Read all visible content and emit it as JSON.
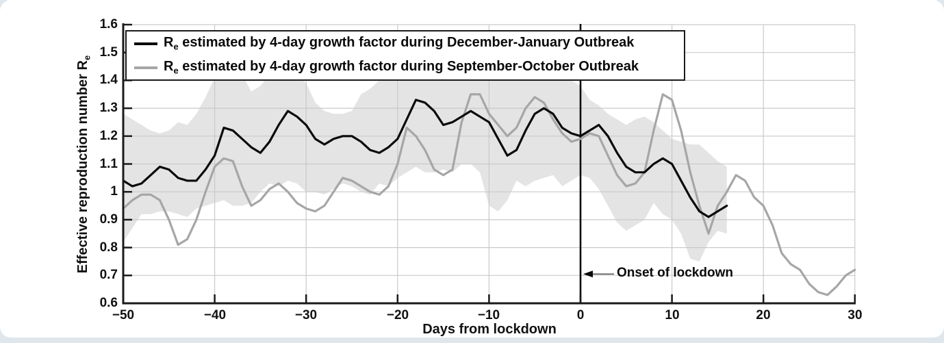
{
  "figure": {
    "page_background": "#dfe7ed",
    "card_background": "#ffffff"
  },
  "legend": {
    "items": [
      {
        "symbol": "R",
        "sub": "e",
        "text": " estimated by 4-day growth factor during December-January Outbreak",
        "color": "#0a0a0a"
      },
      {
        "symbol": "R",
        "sub": "e",
        "text": " estimated by 4-day growth factor during September-October Outbreak",
        "color": "#a6a6a6"
      }
    ]
  },
  "axes": {
    "y_label_main": "Effective reproduction number R",
    "y_label_sub": "e",
    "x_label": "Days from lockdown",
    "y_ticks": [
      "1.6",
      "1.5",
      "1.4",
      "1.3",
      "1.2",
      "1.1",
      "1",
      "0.9",
      "0.8",
      "0.7",
      "0.6"
    ],
    "x_ticks": [
      "−50",
      "−40",
      "−30",
      "−20",
      "−10",
      "0",
      "10",
      "20",
      "30"
    ]
  },
  "annotation": {
    "text": "Onset of lockdown",
    "arrow_points_to_day": 0,
    "arrow_y_value": 0.705
  },
  "colors": {
    "black_line": "#0a0a0a",
    "gray_line": "#a6a6a6",
    "band_fill": "#e4e4e4",
    "gridline": "#c9c9c9",
    "spine": "#1a1a1a"
  },
  "chart_data": {
    "type": "line",
    "title": "",
    "xlabel": "Days from lockdown",
    "ylabel": "Effective reproduction number Re",
    "xlim": [
      -50,
      30
    ],
    "ylim": [
      0.6,
      1.6
    ],
    "grid": true,
    "legend_position": "top-left",
    "lockdown_line_x": 0,
    "x_grid": [
      -40,
      -30,
      -20,
      -10,
      0,
      10,
      20,
      30
    ],
    "y_grid": [
      0.7,
      0.8,
      0.9,
      1.0,
      1.1,
      1.2,
      1.3,
      1.4,
      1.5,
      1.6
    ],
    "series": [
      {
        "name": "Re estimated by 4-day growth factor during December-January Outbreak",
        "color": "#0a0a0a",
        "x": [
          -50,
          -49,
          -48,
          -47,
          -46,
          -45,
          -44,
          -43,
          -42,
          -41,
          -40,
          -39,
          -38,
          -37,
          -36,
          -35,
          -34,
          -33,
          -32,
          -31,
          -30,
          -29,
          -28,
          -27,
          -26,
          -25,
          -24,
          -23,
          -22,
          -21,
          -20,
          -19,
          -18,
          -17,
          -16,
          -15,
          -14,
          -13,
          -12,
          -11,
          -10,
          -9,
          -8,
          -7,
          -6,
          -5,
          -4,
          -3,
          -2,
          -1,
          0,
          1,
          2,
          3,
          4,
          5,
          6,
          7,
          8,
          9,
          10,
          11,
          12,
          13,
          14,
          15,
          16
        ],
        "y": [
          1.04,
          1.02,
          1.03,
          1.06,
          1.09,
          1.08,
          1.05,
          1.04,
          1.04,
          1.08,
          1.13,
          1.23,
          1.22,
          1.19,
          1.16,
          1.14,
          1.18,
          1.24,
          1.29,
          1.27,
          1.24,
          1.19,
          1.17,
          1.19,
          1.2,
          1.2,
          1.18,
          1.15,
          1.14,
          1.16,
          1.19,
          1.26,
          1.33,
          1.32,
          1.29,
          1.24,
          1.25,
          1.27,
          1.29,
          1.27,
          1.25,
          1.19,
          1.13,
          1.15,
          1.22,
          1.28,
          1.3,
          1.28,
          1.23,
          1.21,
          1.2,
          1.22,
          1.24,
          1.2,
          1.14,
          1.09,
          1.07,
          1.07,
          1.1,
          1.12,
          1.1,
          1.04,
          0.98,
          0.93,
          0.91,
          0.93,
          0.95
        ]
      },
      {
        "name": "Re estimated by 4-day growth factor during September-October Outbreak",
        "color": "#a6a6a6",
        "x": [
          -50,
          -49,
          -48,
          -47,
          -46,
          -45,
          -44,
          -43,
          -42,
          -41,
          -40,
          -39,
          -38,
          -37,
          -36,
          -35,
          -34,
          -33,
          -32,
          -31,
          -30,
          -29,
          -28,
          -27,
          -26,
          -25,
          -24,
          -23,
          -22,
          -21,
          -20,
          -19,
          -18,
          -17,
          -16,
          -15,
          -14,
          -13,
          -12,
          -11,
          -10,
          -9,
          -8,
          -7,
          -6,
          -5,
          -4,
          -3,
          -2,
          -1,
          0,
          1,
          2,
          3,
          4,
          5,
          6,
          7,
          8,
          9,
          10,
          11,
          12,
          13,
          14,
          15,
          16,
          17,
          18,
          19,
          20,
          21,
          22,
          23,
          24,
          25,
          26,
          27,
          28,
          29,
          30
        ],
        "y": [
          0.94,
          0.97,
          0.99,
          0.99,
          0.97,
          0.9,
          0.81,
          0.83,
          0.9,
          1.0,
          1.09,
          1.12,
          1.11,
          1.02,
          0.95,
          0.97,
          1.01,
          1.03,
          1.0,
          0.96,
          0.94,
          0.93,
          0.95,
          1.0,
          1.05,
          1.04,
          1.02,
          1.0,
          0.99,
          1.02,
          1.1,
          1.23,
          1.2,
          1.15,
          1.08,
          1.06,
          1.08,
          1.25,
          1.35,
          1.35,
          1.28,
          1.24,
          1.2,
          1.23,
          1.3,
          1.34,
          1.32,
          1.26,
          1.21,
          1.18,
          1.19,
          1.21,
          1.2,
          1.13,
          1.06,
          1.02,
          1.03,
          1.07,
          1.22,
          1.35,
          1.33,
          1.22,
          1.07,
          0.95,
          0.85,
          0.95,
          1.0,
          1.06,
          1.04,
          0.98,
          0.95,
          0.88,
          0.78,
          0.74,
          0.72,
          0.67,
          0.64,
          0.63,
          0.66,
          0.7,
          0.72
        ]
      }
    ],
    "band": {
      "belongs_to": "December-January series (confidence interval)",
      "color": "#e4e4e4",
      "x": [
        -50,
        -49,
        -48,
        -47,
        -46,
        -45,
        -44,
        -43,
        -42,
        -41,
        -40,
        -39,
        -38,
        -37,
        -36,
        -35,
        -34,
        -33,
        -32,
        -31,
        -30,
        -29,
        -28,
        -27,
        -26,
        -25,
        -24,
        -23,
        -22,
        -21,
        -20,
        -19,
        -18,
        -17,
        -16,
        -15,
        -14,
        -13,
        -12,
        -11,
        -10,
        -9,
        -8,
        -7,
        -6,
        -5,
        -4,
        -3,
        -2,
        -1,
        0,
        1,
        2,
        3,
        4,
        5,
        6,
        7,
        8,
        9,
        10,
        11,
        12,
        13,
        14,
        15,
        16
      ],
      "upper": [
        1.28,
        1.26,
        1.24,
        1.22,
        1.21,
        1.22,
        1.25,
        1.24,
        1.28,
        1.34,
        1.41,
        1.42,
        1.45,
        1.42,
        1.36,
        1.38,
        1.42,
        1.44,
        1.45,
        1.42,
        1.39,
        1.32,
        1.29,
        1.28,
        1.28,
        1.29,
        1.35,
        1.37,
        1.4,
        1.42,
        1.44,
        1.42,
        1.45,
        1.44,
        1.41,
        1.42,
        1.44,
        1.45,
        1.46,
        1.44,
        1.42,
        1.4,
        1.41,
        1.42,
        1.44,
        1.45,
        1.45,
        1.42,
        1.41,
        1.4,
        1.38,
        1.33,
        1.31,
        1.28,
        1.26,
        1.24,
        1.26,
        1.27,
        1.25,
        1.22,
        1.19,
        1.18,
        1.17,
        1.17,
        1.14,
        1.11,
        1.09
      ],
      "lower": [
        0.82,
        0.87,
        0.92,
        0.92,
        0.93,
        0.93,
        0.92,
        0.91,
        0.94,
        0.95,
        0.96,
        0.97,
        0.95,
        0.95,
        0.96,
        1.0,
        1.03,
        1.02,
        1.04,
        1.03,
        1.0,
        1.0,
        0.99,
        1.01,
        1.03,
        1.02,
        1.0,
        0.99,
        1.03,
        1.02,
        1.05,
        1.07,
        1.09,
        1.07,
        1.07,
        1.08,
        1.07,
        1.1,
        1.1,
        1.07,
        0.95,
        0.93,
        0.97,
        1.04,
        1.02,
        1.04,
        1.05,
        1.06,
        1.02,
        1.04,
        1.06,
        1.05,
        1.01,
        0.95,
        0.89,
        0.86,
        0.88,
        0.9,
        0.96,
        0.92,
        0.9,
        0.85,
        0.76,
        0.75,
        0.82,
        0.86,
        0.85
      ]
    }
  }
}
